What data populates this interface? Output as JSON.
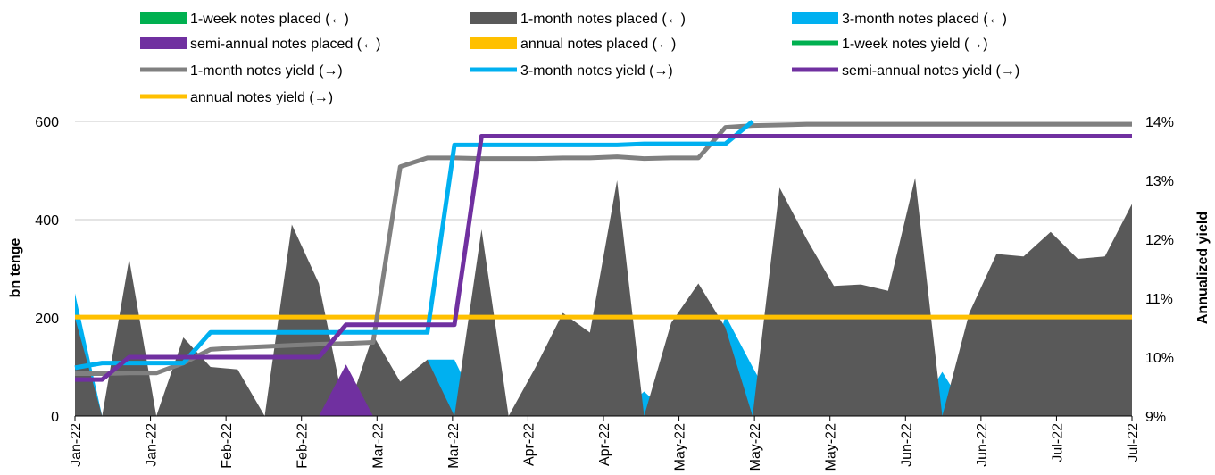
{
  "chart_data": {
    "type": "area",
    "x_tick_labels": [
      "Jan-22",
      "Jan-22",
      "Feb-22",
      "Feb-22",
      "Mar-22",
      "Mar-22",
      "Apr-22",
      "Apr-22",
      "May-22",
      "May-22",
      "May-22",
      "Jun-22",
      "Jun-22",
      "Jul-22",
      "Jul-22"
    ],
    "y_left": {
      "label": "bn tenge",
      "min": 0,
      "max": 600,
      "ticks": [
        "0",
        "200",
        "400",
        "600"
      ]
    },
    "y_right": {
      "label": "Annualized yield",
      "min": 9,
      "max": 14,
      "ticks": [
        "9%",
        "10%",
        "11%",
        "12%",
        "13%",
        "14%"
      ]
    },
    "grid": "horizontal",
    "legend_position": "top",
    "periods": 40,
    "colors": {
      "one_week": "#00b050",
      "one_month_area": "#595959",
      "one_month_line": "#808080",
      "three_month": "#00b0f0",
      "semi_annual": "#7030a0",
      "annual": "#ffc000",
      "grid": "#c8c8c8"
    },
    "legend": [
      {
        "label": "1-week notes placed (←)",
        "kind": "bar",
        "key": "one_week"
      },
      {
        "label": "1-month notes placed (←)",
        "kind": "bar",
        "key": "one_month_area"
      },
      {
        "label": " 3-month notes placed (←)",
        "kind": "bar",
        "key": "three_month"
      },
      {
        "label": "semi-annual notes placed (←)",
        "kind": "bar",
        "key": "semi_annual"
      },
      {
        "label": "annual notes placed (←)",
        "kind": "bar",
        "key": "annual"
      },
      {
        "label": "1-week notes yield (→)",
        "kind": "line",
        "key": "one_week"
      },
      {
        "label": "1-month notes yield (→)",
        "kind": "line",
        "key": "one_month_line"
      },
      {
        "label": "3-month notes yield (→)",
        "kind": "line",
        "key": "three_month"
      },
      {
        "label": "semi-annual notes yield (→)",
        "kind": "line",
        "key": "semi_annual"
      },
      {
        "label": "annual notes yield (→)",
        "kind": "line",
        "key": "annual"
      }
    ],
    "series": [
      {
        "name": "1-month notes placed (←)",
        "type": "area",
        "key": "one_month_area",
        "values": [
          200,
          0,
          320,
          0,
          160,
          100,
          95,
          0,
          390,
          270,
          0,
          165,
          70,
          115,
          0,
          380,
          0,
          100,
          210,
          170,
          480,
          0,
          190,
          270,
          180,
          0,
          465,
          360,
          265,
          268,
          255,
          485,
          0,
          210,
          330,
          325,
          375,
          320,
          325,
          432
        ]
      },
      {
        "name": " 3-month notes placed (←)",
        "type": "area",
        "key": "three_month",
        "values": [
          250,
          0,
          0,
          0,
          0,
          0,
          0,
          0,
          0,
          0,
          0,
          0,
          0,
          115,
          115,
          0,
          0,
          0,
          0,
          0,
          0,
          50,
          0,
          0,
          205,
          100,
          0,
          0,
          0,
          0,
          0,
          0,
          90,
          0,
          0,
          0,
          0,
          0,
          0,
          0
        ]
      },
      {
        "name": "semi-annual notes placed (←)",
        "type": "area",
        "key": "semi_annual",
        "values": [
          0,
          0,
          0,
          0,
          0,
          0,
          0,
          0,
          0,
          0,
          105,
          0,
          0,
          0,
          0,
          0,
          0,
          0,
          0,
          0,
          0,
          0,
          0,
          0,
          0,
          0,
          0,
          0,
          0,
          0,
          0,
          0,
          0,
          0,
          0,
          0,
          0,
          0,
          0,
          0
        ]
      },
      {
        "name": "1-month notes yield (→)",
        "type": "line",
        "key": "one_month_line",
        "values": [
          9.72,
          9.72,
          9.73,
          9.73,
          9.9,
          10.13,
          10.16,
          10.18,
          10.2,
          10.22,
          10.23,
          10.25,
          13.23,
          13.38,
          13.38,
          13.37,
          13.37,
          13.37,
          13.38,
          13.38,
          13.4,
          13.37,
          13.38,
          13.38,
          13.9,
          13.93,
          13.94,
          13.95,
          13.95,
          13.95,
          13.95,
          13.95,
          13.95,
          13.95,
          13.95,
          13.95,
          13.95,
          13.95,
          13.95,
          13.95
        ]
      },
      {
        "name": "3-month notes yield (→)",
        "type": "line",
        "key": "three_month",
        "values": [
          9.82,
          9.9,
          9.9,
          9.9,
          9.9,
          10.42,
          10.42,
          10.42,
          10.42,
          10.42,
          10.42,
          10.42,
          10.42,
          10.42,
          13.6,
          13.6,
          13.6,
          13.6,
          13.6,
          13.6,
          13.6,
          13.62,
          13.62,
          13.62,
          13.62,
          14.0,
          null,
          null,
          null,
          null,
          null,
          null,
          null,
          null,
          null,
          null,
          null,
          null,
          null,
          null
        ]
      },
      {
        "name": "semi-annual notes yield (→)",
        "type": "line",
        "key": "semi_annual",
        "values": [
          9.62,
          9.62,
          10.0,
          10.0,
          10.0,
          10.0,
          10.0,
          10.0,
          10.0,
          10.0,
          10.55,
          10.55,
          10.55,
          10.55,
          10.55,
          13.75,
          13.75,
          13.75,
          13.75,
          13.75,
          13.75,
          13.75,
          13.75,
          13.75,
          13.75,
          13.75,
          13.75,
          13.75,
          13.75,
          13.75,
          13.75,
          13.75,
          13.75,
          13.75,
          13.75,
          13.75,
          13.75,
          13.75,
          13.75,
          13.75
        ]
      },
      {
        "name": "annual notes yield (→)",
        "type": "line",
        "key": "annual",
        "values": [
          10.68,
          10.68,
          10.68,
          10.68,
          10.68,
          10.68,
          10.68,
          10.68,
          10.68,
          10.68,
          10.68,
          10.68,
          10.68,
          10.68,
          10.68,
          10.68,
          10.68,
          10.68,
          10.68,
          10.68,
          10.68,
          10.68,
          10.68,
          10.68,
          10.68,
          10.68,
          10.68,
          10.68,
          10.68,
          10.68,
          10.68,
          10.68,
          10.68,
          10.68,
          10.68,
          10.68,
          10.68,
          10.68,
          10.68,
          10.68
        ]
      }
    ]
  }
}
